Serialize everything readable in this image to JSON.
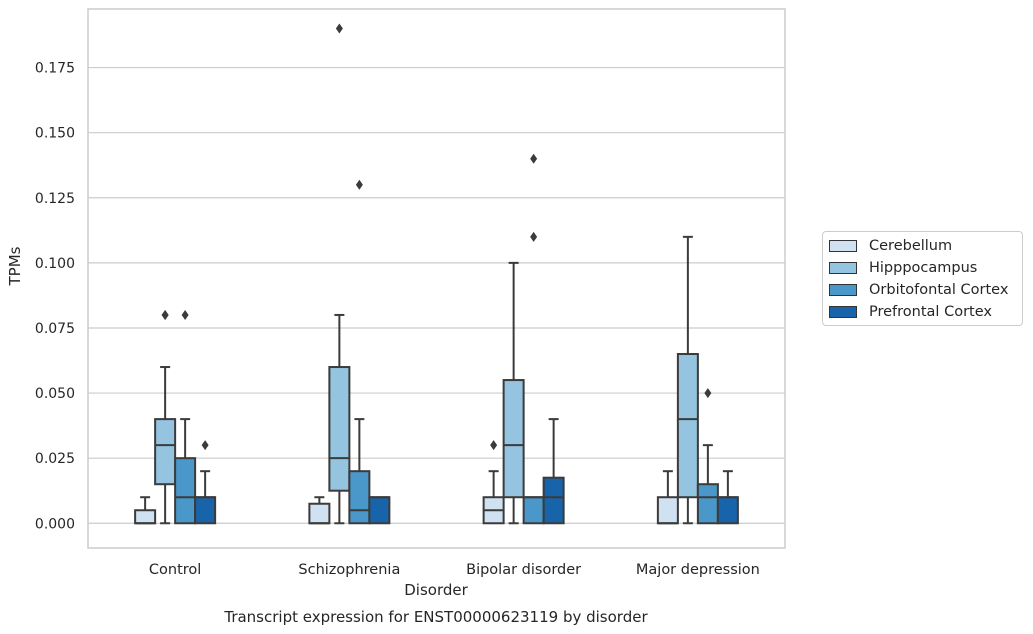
{
  "chart_data": {
    "type": "box",
    "title": "Transcript expression for ENST00000623119 by disorder",
    "xlabel": "Disorder",
    "ylabel": "TPMs",
    "ylim": [
      -0.0095,
      0.1975
    ],
    "yticks": [
      "0.000",
      "0.025",
      "0.050",
      "0.075",
      "0.100",
      "0.125",
      "0.150",
      "0.175"
    ],
    "ytick_values": [
      0,
      0.025,
      0.05,
      0.075,
      0.1,
      0.125,
      0.15,
      0.175
    ],
    "grid": true,
    "legend_position": "right",
    "categories": [
      "Control",
      "Schizophrenia",
      "Bipolar disorder",
      "Major depression"
    ],
    "series": [
      {
        "name": "Cerebellum",
        "color": "#d0e1f2",
        "boxes": [
          {
            "whislo": 0,
            "q1": 0,
            "med": 0,
            "q3": 0.005,
            "whishi": 0.01,
            "fliers": []
          },
          {
            "whislo": 0,
            "q1": 0,
            "med": 0,
            "q3": 0.0075,
            "whishi": 0.01,
            "fliers": []
          },
          {
            "whislo": 0,
            "q1": 0,
            "med": 0.005,
            "q3": 0.01,
            "whishi": 0.02,
            "fliers": [
              0.03
            ]
          },
          {
            "whislo": 0,
            "q1": 0,
            "med": 0,
            "q3": 0.01,
            "whishi": 0.02,
            "fliers": []
          }
        ]
      },
      {
        "name": "Hipppocampus",
        "color": "#94c4df",
        "boxes": [
          {
            "whislo": 0,
            "q1": 0.015,
            "med": 0.03,
            "q3": 0.04,
            "whishi": 0.06,
            "fliers": [
              0.08,
              0.08
            ]
          },
          {
            "whislo": 0,
            "q1": 0.0125,
            "med": 0.025,
            "q3": 0.06,
            "whishi": 0.08,
            "fliers": [
              0.19
            ]
          },
          {
            "whislo": 0,
            "q1": 0.01,
            "med": 0.03,
            "q3": 0.055,
            "whishi": 0.1,
            "fliers": []
          },
          {
            "whislo": 0,
            "q1": 0.01,
            "med": 0.04,
            "q3": 0.065,
            "whishi": 0.11,
            "fliers": []
          }
        ]
      },
      {
        "name": "Orbitofontal Cortex",
        "color": "#4a98c9",
        "boxes": [
          {
            "whislo": 0,
            "q1": 0,
            "med": 0.01,
            "q3": 0.025,
            "whishi": 0.04,
            "fliers": [
              0.08
            ]
          },
          {
            "whislo": 0,
            "q1": 0,
            "med": 0.005,
            "q3": 0.02,
            "whishi": 0.04,
            "fliers": [
              0.13
            ]
          },
          {
            "whislo": 0,
            "q1": 0,
            "med": 0.01,
            "q3": 0.01,
            "whishi": 0.01,
            "fliers": [
              0.14,
              0.11
            ]
          },
          {
            "whislo": 0,
            "q1": 0,
            "med": 0.01,
            "q3": 0.015,
            "whishi": 0.03,
            "fliers": [
              0.05
            ]
          }
        ]
      },
      {
        "name": "Prefrontal Cortex",
        "color": "#1764ab",
        "boxes": [
          {
            "whislo": 0,
            "q1": 0,
            "med": 0.01,
            "q3": 0.01,
            "whishi": 0.02,
            "fliers": [
              0.03
            ]
          },
          {
            "whislo": 0,
            "q1": 0,
            "med": 0.01,
            "q3": 0.01,
            "whishi": 0.01,
            "fliers": []
          },
          {
            "whislo": 0,
            "q1": 0,
            "med": 0.01,
            "q3": 0.0175,
            "whishi": 0.04,
            "fliers": []
          },
          {
            "whislo": 0,
            "q1": 0,
            "med": 0.01,
            "q3": 0.01,
            "whishi": 0.02,
            "fliers": []
          }
        ]
      }
    ]
  }
}
